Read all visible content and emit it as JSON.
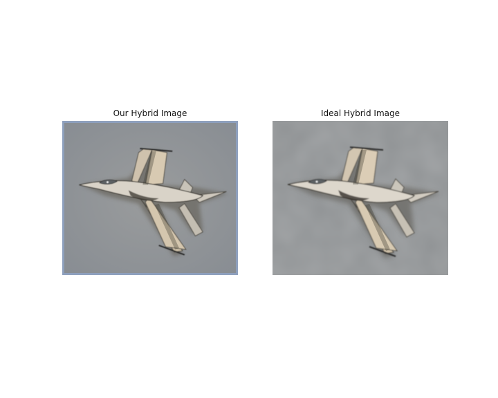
{
  "figure": {
    "panels": [
      {
        "title": "Our Hybrid Image",
        "image": "fighter-jet-hybrid-image",
        "background_color": "#8c9094",
        "frame_color": "#8ea0bd"
      },
      {
        "title": "Ideal Hybrid Image",
        "image": "fighter-jet-hybrid-image-ideal",
        "background_color": "#8f9294"
      }
    ]
  }
}
